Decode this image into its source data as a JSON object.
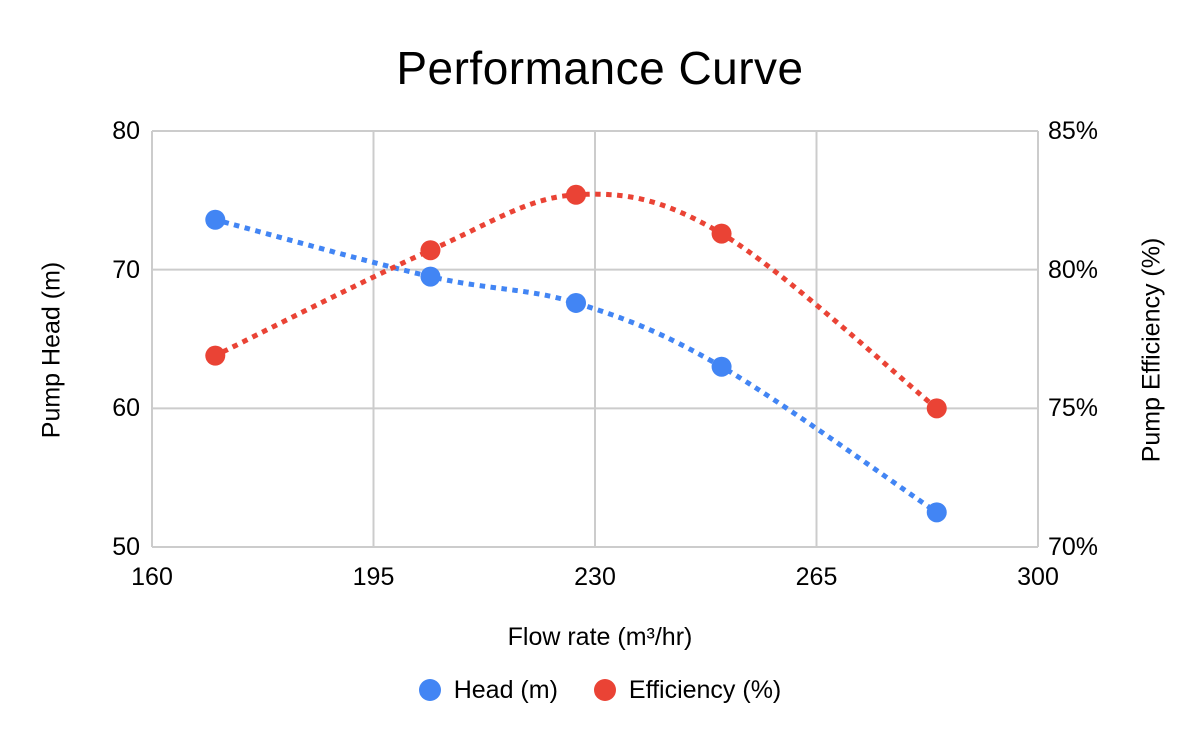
{
  "page": {
    "background_color": "#FFFFFF",
    "text_color": "#000000"
  },
  "chart_data": {
    "type": "line",
    "title": "Performance Curve",
    "xlabel": "Flow rate (m³/hr)",
    "ylabel_left": "Pump Head (m)",
    "ylabel_right": "Pump Efficiency (%)",
    "x": [
      170,
      204,
      227,
      250,
      284
    ],
    "series": [
      {
        "name": "Head (m)",
        "axis": "left",
        "color": "#4285F4",
        "line_style": "dotted",
        "marker": "circle",
        "values": [
          73.6,
          69.5,
          67.6,
          63.0,
          52.5
        ]
      },
      {
        "name": "Efficiency (%)",
        "axis": "right",
        "color": "#EA4335",
        "line_style": "dotted",
        "marker": "circle",
        "values": [
          76.9,
          80.7,
          82.7,
          81.3,
          75.0
        ]
      }
    ],
    "xlim": [
      160,
      300
    ],
    "ylim_left": [
      50,
      80
    ],
    "ylim_right": [
      70,
      85
    ],
    "x_ticks": [
      {
        "value": 160,
        "label": "160"
      },
      {
        "value": 195,
        "label": "195"
      },
      {
        "value": 230,
        "label": "230"
      },
      {
        "value": 265,
        "label": "265"
      },
      {
        "value": 300,
        "label": "300"
      }
    ],
    "y_ticks_left": [
      {
        "value": 80,
        "label": "80"
      },
      {
        "value": 70,
        "label": "70"
      },
      {
        "value": 60,
        "label": "60"
      },
      {
        "value": 50,
        "label": "50"
      }
    ],
    "y_ticks_right": [
      {
        "value": 85,
        "label": "85%"
      },
      {
        "value": 80,
        "label": "80%"
      },
      {
        "value": 75,
        "label": "75%"
      },
      {
        "value": 70,
        "label": "70%"
      }
    ],
    "grid": true,
    "gridline_color": "#CCCCCC",
    "legend_position": "bottom",
    "smooth_lines": true
  }
}
